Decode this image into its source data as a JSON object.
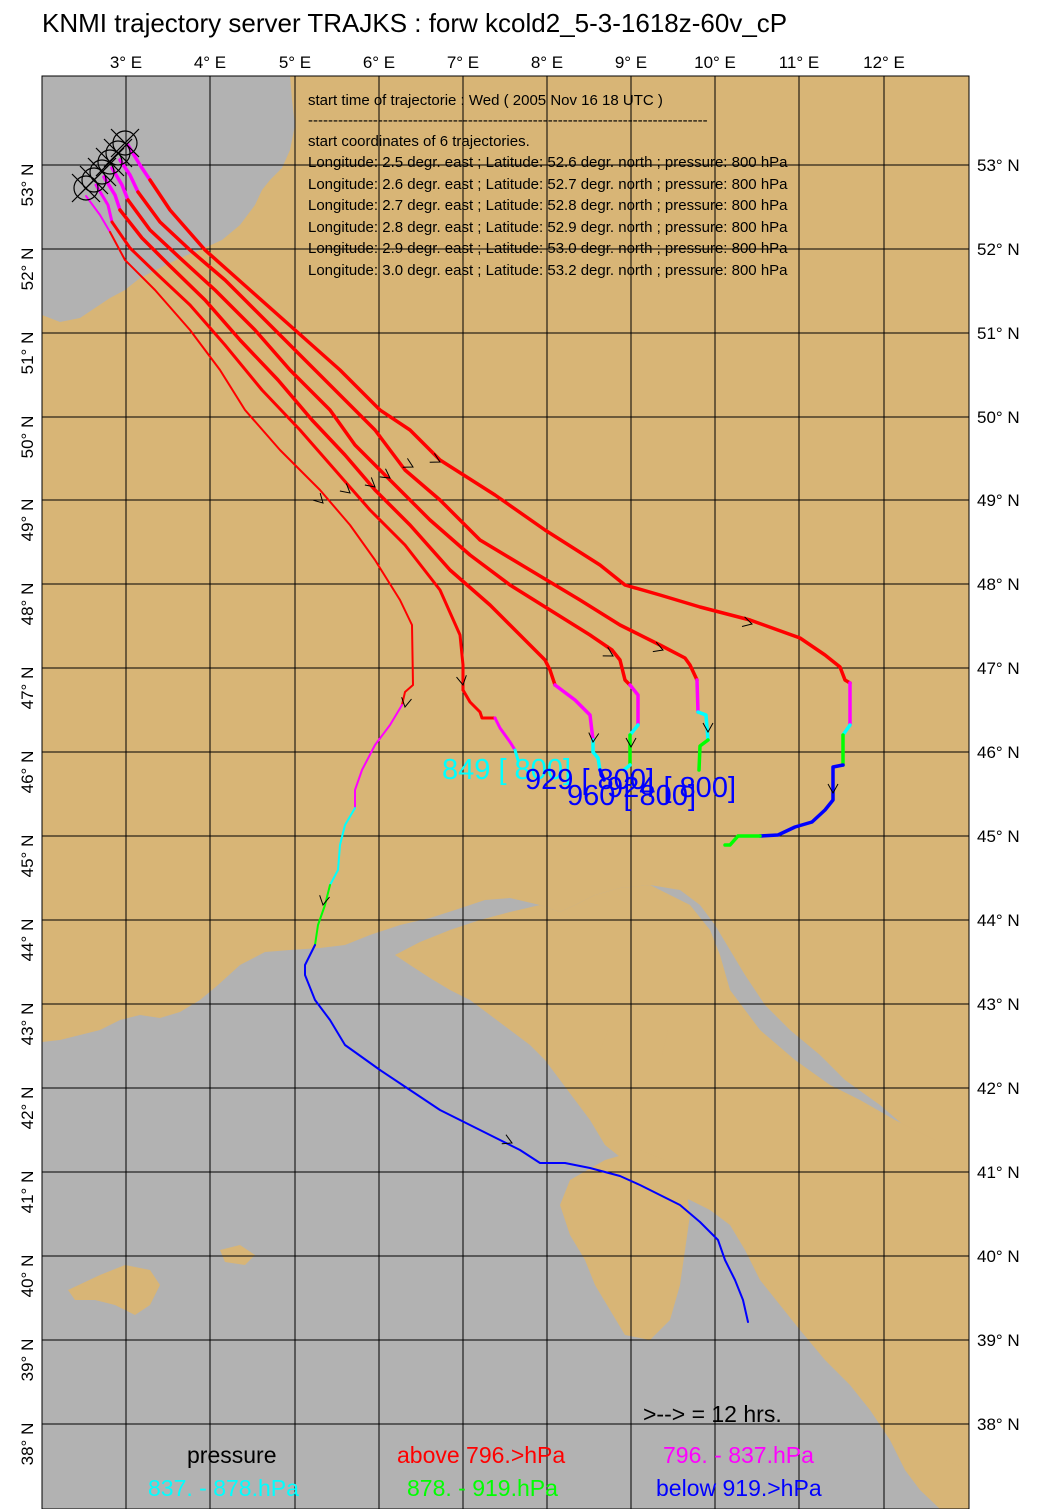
{
  "title": "KNMI trajectory server TRAJKS : forw kcold2_5-3-1618z-60v_cP",
  "info": {
    "start_time": "start time of trajectorie : Wed ( 2005 Nov 16 18 UTC )",
    "separator": "--------------------------------------------------------------------------------",
    "coords_header": "start coordinates of 6 trajectories.",
    "coords": [
      "Longitude: 2.5 degr. east ; Latitude: 52.6 degr. north ; pressure: 800 hPa",
      "Longitude: 2.6 degr. east ; Latitude: 52.7 degr. north ; pressure: 800 hPa",
      "Longitude: 2.7 degr. east ; Latitude: 52.8 degr. north ; pressure: 800 hPa",
      "Longitude: 2.8 degr. east ; Latitude: 52.9 degr. north ; pressure: 800 hPa",
      "Longitude: 2.9 degr. east ; Latitude: 53.0 degr. north ; pressure: 800 hPa",
      "Longitude: 3.0 degr. east ; Latitude: 53.2 degr. north ; pressure: 800 hPa"
    ]
  },
  "axes": {
    "lon_labels": [
      "3° E",
      "4° E",
      "5° E",
      "6° E",
      "7° E",
      "8° E",
      "9° E",
      "10° E",
      "11° E",
      "12° E"
    ],
    "lat_labels_right": [
      "53° N",
      "52° N",
      "51° N",
      "50° N",
      "49° N",
      "48° N",
      "47° N",
      "46° N",
      "45° N",
      "44° N",
      "43° N",
      "42° N",
      "41° N",
      "40° N",
      "39° N",
      "38° N"
    ],
    "lat_labels_left": [
      "53° N",
      "52° N",
      "51° N",
      "50° N",
      "49° N",
      "48° N",
      "47° N",
      "46° N",
      "45° N",
      "44° N",
      "43° N",
      "42° N",
      "41° N",
      "40° N",
      "39° N",
      "38° N"
    ]
  },
  "end_labels": [
    {
      "text": "849 [ 800]",
      "color": "#00ffff"
    },
    {
      "text": "929 [ 800]",
      "color": "#0000ff"
    },
    {
      "text": "960 [ 800]",
      "color": "#0000ff"
    },
    {
      "text": "924 [ 800]",
      "color": "#0000ff"
    }
  ],
  "time_marker": ">--> = 12 hrs.",
  "legend": {
    "title": "pressure",
    "items": [
      {
        "label": "above 796.>hPa",
        "color": "#ff0000"
      },
      {
        "label": "796. -  837.hPa",
        "color": "#ff00ff"
      },
      {
        "label": "837. -  878.hPa",
        "color": "#00ffff"
      },
      {
        "label": "878. -  919.hPa",
        "color": "#00ff00"
      },
      {
        "label": "below 919.>hPa",
        "color": "#0000ff"
      }
    ]
  },
  "colors": {
    "sea": "#b2b2b2",
    "land": "#d8b576",
    "red": "#ff0000",
    "magenta": "#ff00ff",
    "cyan": "#00ffff",
    "green": "#00ff00",
    "blue": "#0000ff"
  }
}
